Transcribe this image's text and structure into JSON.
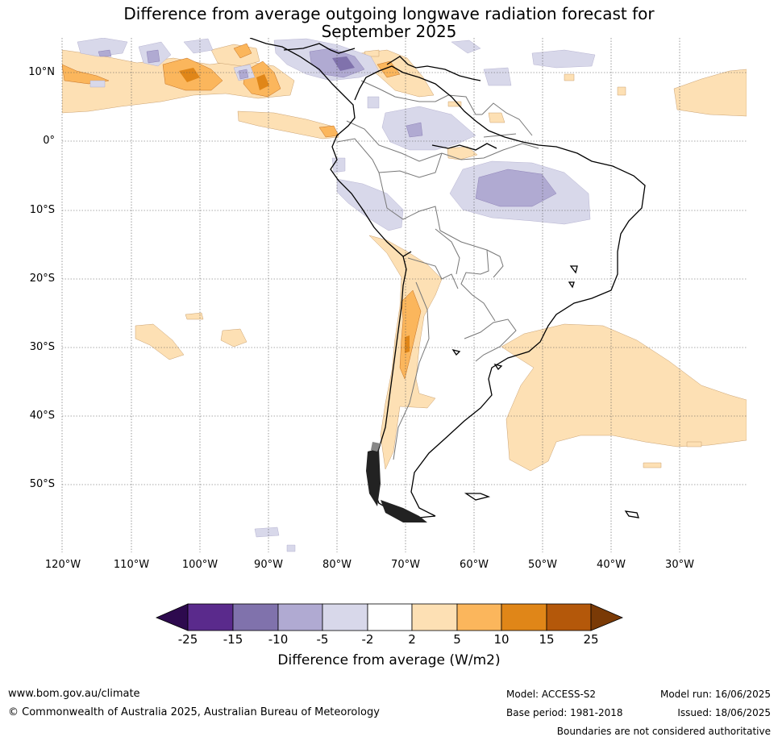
{
  "title_line1": "Difference from average outgoing longwave radiation forecast for",
  "title_line2": "September 2025",
  "map": {
    "lat_labels": [
      "10°N",
      "0°",
      "10°S",
      "20°S",
      "30°S",
      "40°S",
      "50°S"
    ],
    "lon_labels": [
      "120°W",
      "110°W",
      "100°W",
      "90°W",
      "80°W",
      "70°W",
      "60°W",
      "50°W",
      "40°W",
      "30°W"
    ]
  },
  "colorbar": {
    "title": "Difference from average (W/m2)",
    "ticks": [
      "-25",
      "-15",
      "-10",
      "-5",
      "-2",
      "2",
      "5",
      "10",
      "15",
      "25"
    ],
    "colors": {
      "below": "#2d0a4e",
      "bin1": "#5a2a8c",
      "bin2": "#8072ac",
      "bin3": "#b0aad2",
      "bin4": "#d8d8ea",
      "neutral": "#ffffff",
      "bin6": "#fde0b4",
      "bin7": "#fbb65c",
      "bin8": "#e08618",
      "bin9": "#b4580a",
      "above": "#7a3a06"
    }
  },
  "footer": {
    "website": "www.bom.gov.au/climate",
    "copyright": "© Commonwealth of Australia 2025, Australian Bureau of Meteorology",
    "model": "Model: ACCESS-S2",
    "base_period": "Base period: 1981-2018",
    "model_run": "Model run: 16/06/2025",
    "issued": "Issued: 18/06/2025",
    "disclaimer": "Boundaries are not considered authoritative"
  }
}
